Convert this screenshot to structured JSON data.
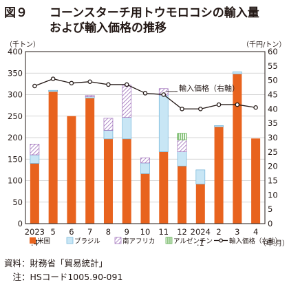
{
  "figure": {
    "number": "図９",
    "title_line1": "コーンスターチ用トウモロコシの輸入量",
    "title_line2": "および輸入価格の推移"
  },
  "colors": {
    "us": "#e8631e",
    "brazil": "#c8e6f5",
    "south_africa": "#c4a3d1",
    "argentina": "#9ed08a",
    "line": "#231815",
    "grid": "#c8c8c8"
  },
  "chart_data": {
    "type": "bar",
    "stacked": true,
    "y_left_label": "（千トン）",
    "y_right_label": "（千円/トン）",
    "x_unit_label": "（年.月）",
    "ylim_left": [
      0,
      400
    ],
    "ylim_right": [
      0,
      60
    ],
    "yticks_left": [
      0,
      50,
      100,
      150,
      200,
      250,
      300,
      350,
      400
    ],
    "yticks_right": [
      0,
      5,
      10,
      15,
      20,
      25,
      30,
      35,
      40,
      45,
      50,
      55,
      60
    ],
    "categories": [
      {
        "line1": "2023",
        "line2": ".4"
      },
      {
        "line1": "5",
        "line2": ""
      },
      {
        "line1": "6",
        "line2": ""
      },
      {
        "line1": "7",
        "line2": ""
      },
      {
        "line1": "8",
        "line2": ""
      },
      {
        "line1": "9",
        "line2": ""
      },
      {
        "line1": "10",
        "line2": ""
      },
      {
        "line1": "11",
        "line2": ""
      },
      {
        "line1": "12",
        "line2": ""
      },
      {
        "line1": "2024",
        "line2": ".1"
      },
      {
        "line1": "2",
        "line2": ""
      },
      {
        "line1": "3",
        "line2": ""
      },
      {
        "line1": "4",
        "line2": ""
      }
    ],
    "series": [
      {
        "name": "米国",
        "key": "us",
        "values": [
          140,
          307,
          250,
          292,
          197,
          197,
          116,
          167,
          134,
          92,
          225,
          348,
          198
        ]
      },
      {
        "name": "ブラジル",
        "key": "brazil",
        "values": [
          20,
          3,
          0,
          3,
          20,
          50,
          25,
          132,
          33,
          33,
          3,
          5,
          0
        ]
      },
      {
        "name": "南アフリカ",
        "key": "south_africa",
        "values": [
          25,
          0,
          0,
          3,
          28,
          75,
          12,
          15,
          28,
          0,
          0,
          0,
          0
        ]
      },
      {
        "name": "アルゼンチン",
        "key": "argentina",
        "values": [
          0,
          0,
          0,
          0,
          0,
          0,
          0,
          0,
          15,
          0,
          0,
          0,
          0
        ]
      }
    ],
    "line_series": {
      "name": "輸入価格（右軸）",
      "annotation": "輸入価格（右軸）",
      "axis": "right",
      "values": [
        48,
        50.5,
        49,
        49.5,
        48.5,
        48.5,
        45.5,
        45,
        40,
        40,
        41.5,
        41.5,
        40.5
      ]
    },
    "legend": [
      "米国",
      "ブラジル",
      "南アフリカ",
      "アルゼンチン",
      "輸入価格（右軸）"
    ],
    "legend_position": "bottom"
  },
  "footer": {
    "source": "資料：財務省「貿易統計」",
    "note": "　注：HSコード1005.90-091"
  }
}
